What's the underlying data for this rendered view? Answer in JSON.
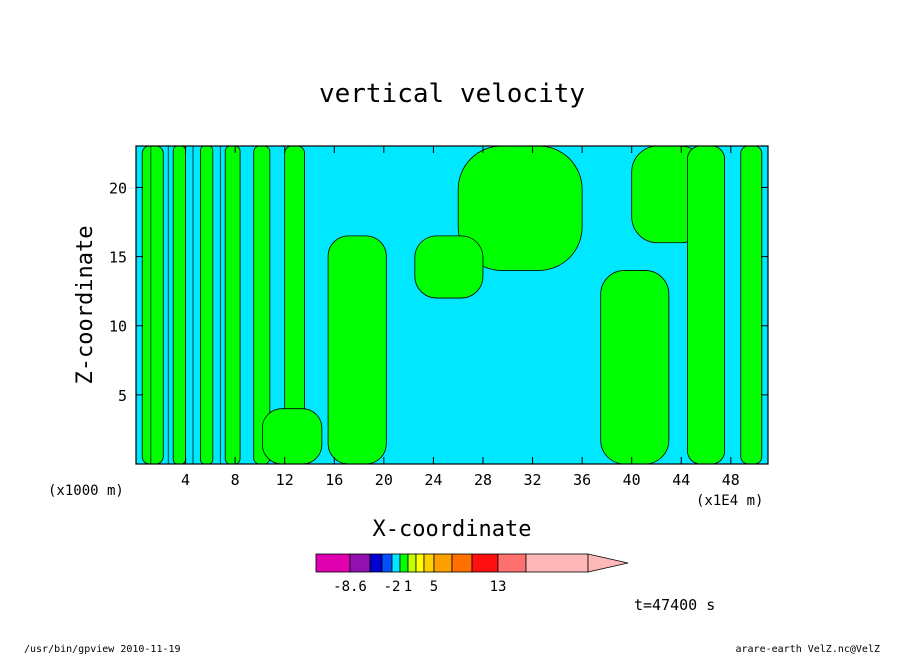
{
  "chart_data": {
    "type": "heatmap",
    "title": "vertical velocity",
    "xlabel": "X-coordinate",
    "ylabel": "Z-coordinate",
    "x_unit_left": "(x1000 m)",
    "x_unit_right": "(x1E4 m)",
    "xlim": [
      0,
      51
    ],
    "ylim": [
      0,
      23
    ],
    "x_ticks": [
      4,
      8,
      12,
      16,
      20,
      24,
      28,
      32,
      36,
      40,
      44,
      48
    ],
    "y_ticks": [
      5,
      10,
      15,
      20
    ],
    "colors": {
      "negative": "#00e8ff",
      "positive": "#00ff00",
      "contour": "#000000"
    },
    "regions": [
      {
        "sign": "positive",
        "x": [
          0.5,
          2.2
        ],
        "z": [
          0,
          23
        ]
      },
      {
        "sign": "positive",
        "x": [
          3.0,
          4.0
        ],
        "z": [
          0,
          23
        ]
      },
      {
        "sign": "positive",
        "x": [
          5.2,
          6.2
        ],
        "z": [
          0,
          23
        ]
      },
      {
        "sign": "positive",
        "x": [
          7.2,
          8.4
        ],
        "z": [
          0,
          23
        ]
      },
      {
        "sign": "positive",
        "x": [
          9.5,
          10.8
        ],
        "z": [
          0,
          23
        ]
      },
      {
        "sign": "positive",
        "x": [
          12.0,
          13.6
        ],
        "z": [
          0,
          23
        ]
      },
      {
        "sign": "positive",
        "x": [
          10.2,
          15.0
        ],
        "z": [
          0,
          4
        ]
      },
      {
        "sign": "positive",
        "x": [
          15.5,
          20.2
        ],
        "z": [
          0,
          16.5
        ]
      },
      {
        "sign": "positive",
        "x": [
          26,
          36
        ],
        "z": [
          14,
          23
        ]
      },
      {
        "sign": "positive",
        "x": [
          22.5,
          28
        ],
        "z": [
          12,
          16.5
        ]
      },
      {
        "sign": "positive",
        "x": [
          37.5,
          43
        ],
        "z": [
          0,
          14
        ]
      },
      {
        "sign": "positive",
        "x": [
          40,
          46
        ],
        "z": [
          16,
          23
        ]
      },
      {
        "sign": "positive",
        "x": [
          44.5,
          47.5
        ],
        "z": [
          0,
          23
        ]
      },
      {
        "sign": "positive",
        "x": [
          48.8,
          50.5
        ],
        "z": [
          0,
          23
        ]
      }
    ],
    "colorbar": {
      "colors": [
        "#e000b0",
        "#9010b0",
        "#0000d0",
        "#0050ff",
        "#00e8ff",
        "#00ff00",
        "#c0ff00",
        "#ffff00",
        "#ffd000",
        "#ffa000",
        "#ff7000",
        "#ff1010",
        "#ff7070",
        "#ffb8b8"
      ],
      "tick_labels": [
        "-8.6",
        "-2",
        "1",
        "5",
        "13"
      ]
    },
    "time_label": "t=47400 s"
  },
  "footer": {
    "left": "/usr/bin/gpview   2010-11-19",
    "right": "arare-earth_VelZ.nc@VelZ"
  }
}
